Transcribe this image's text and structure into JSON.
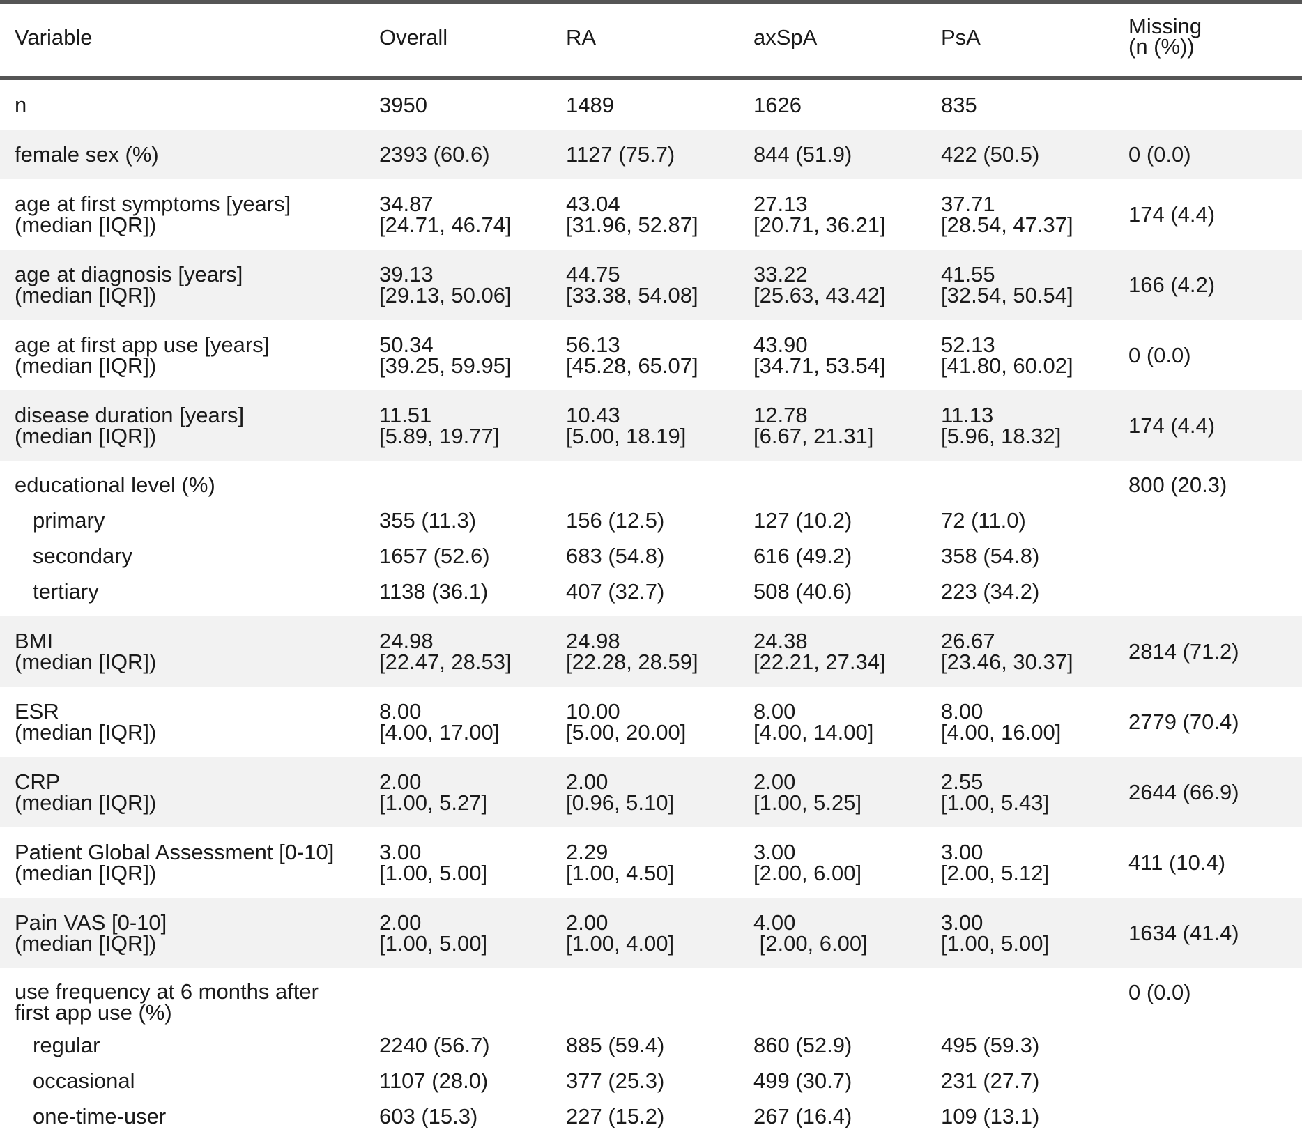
{
  "headers": [
    "Variable",
    "Overall",
    "RA",
    "axSpA",
    "PsA",
    "Missing\n(n (%))"
  ],
  "rows": [
    {
      "label": [
        "n"
      ],
      "cells": [
        [
          "3950"
        ],
        [
          "1489"
        ],
        [
          "1626"
        ],
        [
          "835"
        ],
        [
          ""
        ]
      ],
      "shade": false
    },
    {
      "label": [
        "female sex (%)"
      ],
      "cells": [
        [
          "2393 (60.6)"
        ],
        [
          "1127 (75.7)"
        ],
        [
          "844 (51.9)"
        ],
        [
          "422 (50.5)"
        ],
        [
          "0 (0.0)"
        ]
      ],
      "shade": true
    },
    {
      "label": [
        "age at first symptoms [years]",
        "(median [IQR])"
      ],
      "cells": [
        [
          "34.87",
          "[24.71, 46.74]"
        ],
        [
          "43.04",
          "[31.96, 52.87]"
        ],
        [
          "27.13",
          "[20.71, 36.21]"
        ],
        [
          "37.71",
          "[28.54, 47.37]"
        ],
        [
          "174 (4.4)"
        ]
      ],
      "shade": false
    },
    {
      "label": [
        "age at diagnosis [years]",
        "(median [IQR])"
      ],
      "cells": [
        [
          "39.13",
          "[29.13, 50.06]"
        ],
        [
          "44.75",
          "[33.38, 54.08]"
        ],
        [
          "33.22",
          "[25.63, 43.42]"
        ],
        [
          "41.55",
          "[32.54, 50.54]"
        ],
        [
          "166 (4.2)"
        ]
      ],
      "shade": true
    },
    {
      "label": [
        "age at first app use [years]",
        "(median [IQR])"
      ],
      "cells": [
        [
          "50.34",
          "[39.25, 59.95]"
        ],
        [
          "56.13",
          "[45.28, 65.07]"
        ],
        [
          "43.90",
          "[34.71, 53.54]"
        ],
        [
          "52.13",
          "[41.80, 60.02]"
        ],
        [
          "0 (0.0)"
        ]
      ],
      "shade": false
    },
    {
      "label": [
        "disease duration [years]",
        "(median [IQR])"
      ],
      "cells": [
        [
          "11.51",
          "[5.89, 19.77]"
        ],
        [
          "10.43",
          "[5.00, 18.19]"
        ],
        [
          "12.78",
          "[6.67, 21.31]"
        ],
        [
          "11.13",
          "[5.96, 18.32]"
        ],
        [
          "174 (4.4)"
        ]
      ],
      "shade": true
    },
    {
      "label": [
        "educational level (%)"
      ],
      "cells": [
        [
          ""
        ],
        [
          ""
        ],
        [
          ""
        ],
        [
          ""
        ],
        [
          "800 (20.3)"
        ]
      ],
      "shade": false,
      "subrows": [
        {
          "label": "primary",
          "cells": [
            "355 (11.3)",
            "156 (12.5)",
            "127 (10.2)",
            "72 (11.0)"
          ]
        },
        {
          "label": "secondary",
          "cells": [
            "1657 (52.6)",
            "683 (54.8)",
            "616 (49.2)",
            "358 (54.8)"
          ]
        },
        {
          "label": "tertiary",
          "cells": [
            "1138 (36.1)",
            "407 (32.7)",
            "508 (40.6)",
            "223 (34.2)"
          ]
        }
      ]
    },
    {
      "label": [
        "BMI",
        "(median [IQR])"
      ],
      "cells": [
        [
          "24.98",
          "[22.47, 28.53]"
        ],
        [
          "24.98",
          "[22.28, 28.59]"
        ],
        [
          "24.38",
          "[22.21, 27.34]"
        ],
        [
          "26.67",
          "[23.46, 30.37]"
        ],
        [
          "2814 (71.2)"
        ]
      ],
      "shade": true
    },
    {
      "label": [
        "ESR",
        "(median [IQR])"
      ],
      "cells": [
        [
          "8.00",
          "[4.00, 17.00]"
        ],
        [
          "10.00",
          "[5.00, 20.00]"
        ],
        [
          "8.00",
          "[4.00, 14.00]"
        ],
        [
          "8.00",
          "[4.00, 16.00]"
        ],
        [
          "2779 (70.4)"
        ]
      ],
      "shade": false
    },
    {
      "label": [
        "CRP",
        "(median [IQR])"
      ],
      "cells": [
        [
          "2.00",
          "[1.00, 5.27]"
        ],
        [
          "2.00",
          "[0.96, 5.10]"
        ],
        [
          "2.00",
          "[1.00, 5.25]"
        ],
        [
          "2.55",
          "[1.00, 5.43]"
        ],
        [
          "2644 (66.9)"
        ]
      ],
      "shade": true
    },
    {
      "label": [
        "Patient Global Assessment [0-10]",
        "(median [IQR])"
      ],
      "cells": [
        [
          "3.00",
          "[1.00, 5.00]"
        ],
        [
          "2.29",
          "[1.00, 4.50]"
        ],
        [
          "3.00",
          "[2.00, 6.00]"
        ],
        [
          "3.00",
          "[2.00, 5.12]"
        ],
        [
          "411 (10.4)"
        ]
      ],
      "shade": false
    },
    {
      "label": [
        "Pain VAS [0-10]",
        "(median [IQR])"
      ],
      "cells": [
        [
          "2.00",
          "[1.00, 5.00]"
        ],
        [
          "2.00",
          "[1.00, 4.00]"
        ],
        [
          "4.00",
          " [2.00, 6.00]"
        ],
        [
          "3.00",
          "[1.00, 5.00]"
        ],
        [
          "1634 (41.4)"
        ]
      ],
      "shade": true
    },
    {
      "label": [
        "use frequency at 6 months after",
        "first app use (%)"
      ],
      "cells": [
        [
          ""
        ],
        [
          ""
        ],
        [
          ""
        ],
        [
          ""
        ],
        [
          "0 (0.0)"
        ]
      ],
      "shade": false,
      "subrows": [
        {
          "label": "regular",
          "cells": [
            "2240 (56.7)",
            "885 (59.4)",
            "860 (52.9)",
            "495 (59.3)"
          ]
        },
        {
          "label": "occasional",
          "cells": [
            "1107 (28.0)",
            "377 (25.3)",
            "499 (30.7)",
            "231 (27.7)"
          ]
        },
        {
          "label": "one-time-user",
          "cells": [
            "603 (15.3)",
            "227 (15.2)",
            "267 (16.4)",
            "109 (13.1)"
          ]
        }
      ]
    }
  ]
}
